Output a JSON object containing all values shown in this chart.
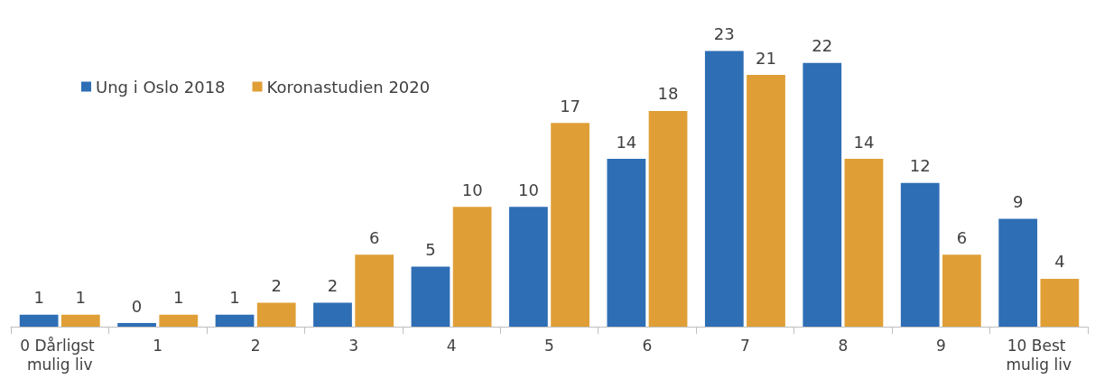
{
  "chart_data": {
    "type": "bar",
    "categories": [
      "0 Dårligst mulig liv",
      "1",
      "2",
      "3",
      "4",
      "5",
      "6",
      "7",
      "8",
      "9",
      "10 Best mulig liv"
    ],
    "series": [
      {
        "name": "Ung i Oslo 2018",
        "color": "#2e6eb5",
        "values": [
          1,
          0.3,
          1,
          2,
          5,
          10,
          14,
          23,
          22,
          12,
          9
        ],
        "value_labels": [
          "1",
          "0",
          "1",
          "2",
          "5",
          "10",
          "14",
          "23",
          "22",
          "12",
          "9"
        ]
      },
      {
        "name": "Koronastudien 2020",
        "color": "#e09f36",
        "values": [
          1,
          1,
          2,
          6,
          10,
          17,
          18,
          21,
          14,
          6,
          4
        ],
        "value_labels": [
          "1",
          "1",
          "2",
          "6",
          "10",
          "17",
          "18",
          "21",
          "14",
          "6",
          "4"
        ]
      }
    ],
    "legend": "top left"
  }
}
